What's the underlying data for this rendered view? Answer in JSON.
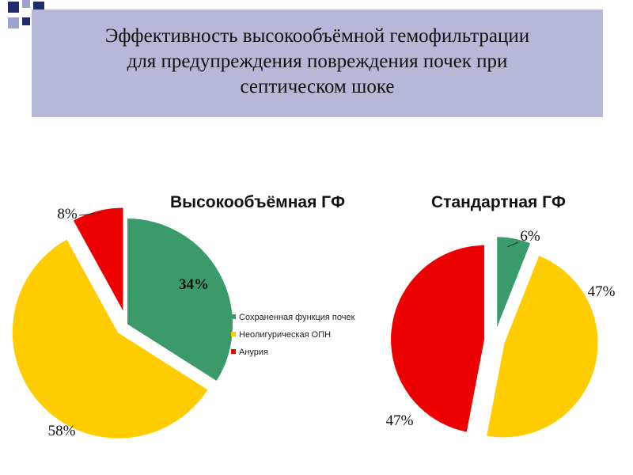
{
  "title_lines": [
    "Эффективность высокообъёмной гемофильтрации",
    "для  предупреждения повреждения почек при",
    "септическом шоке"
  ],
  "colors": {
    "title_band": "#b7b7d7",
    "deco_dark": "#1f2c70",
    "deco_light": "#9aa4cc",
    "green": "#3a9a6a",
    "yellow": "#ffcc00",
    "red": "#ee0000"
  },
  "chart_data": [
    {
      "type": "pie",
      "title": "Высокообъёмная ГФ",
      "categories": [
        "Сохраненная функция почек",
        "Неолигурическая ОПН",
        "Анурия"
      ],
      "values": [
        34,
        58,
        8
      ],
      "labels": [
        "34%",
        "58%",
        "8%"
      ],
      "colors": [
        "#3a9a6a",
        "#ffcc00",
        "#ee0000"
      ],
      "exploded": [
        false,
        true,
        true
      ],
      "legend": "right"
    },
    {
      "type": "pie",
      "title": "Стандартная ГФ",
      "categories": [
        "Сохраненная функция почек",
        "Неолигурическая ОПН",
        "Анурия"
      ],
      "values": [
        6,
        47,
        47
      ],
      "labels": [
        "6%",
        "47%",
        "47%"
      ],
      "colors": [
        "#3a9a6a",
        "#ffcc00",
        "#ee0000"
      ],
      "exploded": [
        true,
        true,
        true
      ],
      "legend": "none"
    }
  ],
  "legend": {
    "items": [
      {
        "label": "Сохраненная функция почек",
        "color": "#3a9a6a"
      },
      {
        "label": "Неолигурическая ОПН",
        "color": "#ffcc00"
      },
      {
        "label": "Анурия",
        "color": "#ee0000"
      }
    ]
  }
}
